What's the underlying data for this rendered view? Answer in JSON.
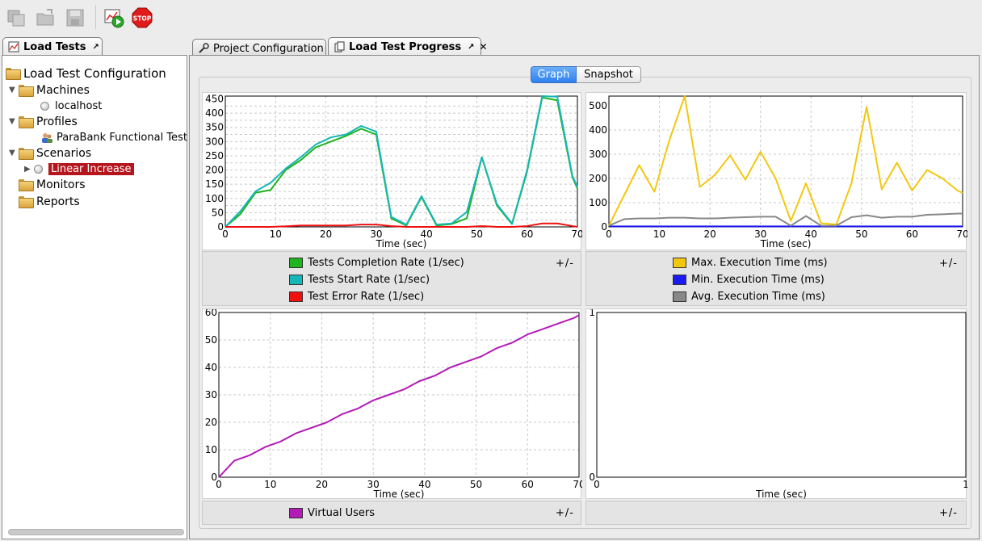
{
  "toolbar": {
    "buttons": [
      {
        "icon": "copy-icon",
        "enabled": false
      },
      {
        "icon": "open-folder-icon",
        "enabled": false
      },
      {
        "icon": "save-icon",
        "enabled": false
      },
      {
        "icon": "run-load-test-icon",
        "enabled": true
      },
      {
        "icon": "stop-icon",
        "label": "STOP",
        "enabled": true
      }
    ]
  },
  "left_tab": {
    "label": "Load Tests"
  },
  "tree": {
    "root": "Load Test Configuration",
    "machines": {
      "label": "Machines",
      "children": [
        "localhost"
      ]
    },
    "profiles": {
      "label": "Profiles",
      "children": [
        "ParaBank Functional Test"
      ]
    },
    "scenarios": {
      "label": "Scenarios",
      "children": [
        "Linear Increase"
      ]
    },
    "monitors": {
      "label": "Monitors"
    },
    "reports": {
      "label": "Reports"
    }
  },
  "main_tabs": [
    {
      "label": "Project Configuration",
      "active": false
    },
    {
      "label": "Load Test Progress",
      "active": true
    }
  ],
  "view_toggle": {
    "graph": "Graph",
    "snapshot": "Snapshot",
    "selected": "graph"
  },
  "colors": {
    "completion": "#1fb31f",
    "start": "#17b7b7",
    "error": "#ef1010",
    "max_exec": "#f2c80f",
    "min_exec": "#1a1af0",
    "avg_exec": "#888888",
    "virtual_users": "#b21bb5"
  },
  "legend_toggle": "+/-",
  "chart_data": [
    {
      "type": "line",
      "xlabel": "Time (sec)",
      "xlim": [
        0,
        70
      ],
      "ylim": [
        0,
        460
      ],
      "x_ticks": [
        0,
        10,
        20,
        30,
        40,
        50,
        60,
        70
      ],
      "y_ticks": [
        0,
        25,
        50,
        75,
        100,
        125,
        150,
        175,
        200,
        225,
        250,
        275,
        300,
        325,
        350,
        375,
        400,
        425,
        450
      ],
      "y_tick_labels": [
        "0",
        "",
        "50",
        "",
        "100",
        "",
        "150",
        "",
        "200",
        "",
        "250",
        "",
        "300",
        "",
        "350",
        "",
        "400",
        "",
        "450"
      ],
      "series": [
        {
          "name": "Tests Completion Rate (1/sec)",
          "color_key": "completion",
          "x": [
            0,
            3,
            6,
            9,
            12,
            15,
            18,
            21,
            24,
            27,
            30,
            33,
            36,
            39,
            42,
            45,
            48,
            51,
            54,
            57,
            60,
            63,
            66,
            69,
            70
          ],
          "y": [
            0,
            45,
            120,
            130,
            200,
            235,
            280,
            300,
            320,
            345,
            325,
            30,
            5,
            105,
            5,
            10,
            30,
            245,
            75,
            10,
            195,
            455,
            445,
            175,
            135
          ]
        },
        {
          "name": "Tests Start Rate (1/sec)",
          "color_key": "start",
          "x": [
            0,
            3,
            6,
            9,
            12,
            15,
            18,
            21,
            24,
            27,
            30,
            33,
            36,
            39,
            42,
            45,
            48,
            51,
            54,
            57,
            60,
            63,
            66,
            69,
            70
          ],
          "y": [
            0,
            55,
            125,
            155,
            205,
            245,
            290,
            315,
            325,
            355,
            335,
            35,
            8,
            108,
            8,
            12,
            52,
            245,
            80,
            12,
            200,
            460,
            458,
            180,
            140
          ]
        },
        {
          "name": "Test Error Rate (1/sec)",
          "color_key": "error",
          "x": [
            0,
            3,
            6,
            9,
            12,
            15,
            18,
            21,
            24,
            27,
            30,
            33,
            36,
            39,
            42,
            45,
            48,
            51,
            54,
            57,
            60,
            63,
            66,
            69,
            70
          ],
          "y": [
            0,
            0,
            0,
            0,
            2,
            5,
            5,
            5,
            5,
            8,
            8,
            3,
            0,
            0,
            0,
            0,
            0,
            3,
            0,
            0,
            3,
            12,
            12,
            3,
            0
          ]
        }
      ]
    },
    {
      "type": "line",
      "xlabel": "Time (sec)",
      "xlim": [
        0,
        70
      ],
      "ylim": [
        0,
        540
      ],
      "x_ticks": [
        0,
        10,
        20,
        30,
        40,
        50,
        60,
        70
      ],
      "y_ticks": [
        0,
        100,
        200,
        300,
        400,
        500
      ],
      "series": [
        {
          "name": "Max. Execution Time (ms)",
          "color_key": "max_exec",
          "x": [
            0,
            3,
            6,
            9,
            12,
            15,
            18,
            21,
            24,
            27,
            30,
            33,
            36,
            39,
            42,
            45,
            48,
            51,
            54,
            57,
            60,
            63,
            66,
            69,
            70
          ],
          "y": [
            5,
            130,
            255,
            145,
            360,
            540,
            165,
            215,
            295,
            195,
            310,
            200,
            25,
            180,
            15,
            10,
            180,
            495,
            155,
            265,
            150,
            235,
            200,
            150,
            140
          ]
        },
        {
          "name": "Min. Execution Time (ms)",
          "color_key": "min_exec",
          "x": [
            0,
            3,
            6,
            9,
            12,
            15,
            18,
            21,
            24,
            27,
            30,
            33,
            36,
            39,
            42,
            45,
            48,
            51,
            54,
            57,
            60,
            63,
            66,
            69,
            70
          ],
          "y": [
            2,
            2,
            2,
            2,
            2,
            2,
            2,
            2,
            2,
            2,
            2,
            2,
            2,
            2,
            2,
            2,
            2,
            2,
            2,
            2,
            2,
            2,
            2,
            2,
            2
          ]
        },
        {
          "name": "Avg. Execution Time (ms)",
          "color_key": "avg_exec",
          "x": [
            0,
            3,
            6,
            9,
            12,
            15,
            18,
            21,
            24,
            27,
            30,
            33,
            36,
            39,
            42,
            45,
            48,
            51,
            54,
            57,
            60,
            63,
            66,
            69,
            70
          ],
          "y": [
            5,
            32,
            35,
            35,
            38,
            38,
            35,
            35,
            38,
            40,
            42,
            42,
            5,
            45,
            5,
            5,
            40,
            48,
            38,
            42,
            42,
            50,
            52,
            55,
            55
          ]
        }
      ]
    },
    {
      "type": "line",
      "xlabel": "Time (sec)",
      "xlim": [
        0,
        70
      ],
      "ylim": [
        0,
        60
      ],
      "x_ticks": [
        0,
        10,
        20,
        30,
        40,
        50,
        60,
        70
      ],
      "y_ticks": [
        0,
        10,
        20,
        30,
        40,
        50,
        60
      ],
      "series": [
        {
          "name": "Virtual Users",
          "color_key": "virtual_users",
          "x": [
            0,
            3,
            6,
            9,
            12,
            15,
            18,
            21,
            24,
            27,
            30,
            33,
            36,
            39,
            42,
            45,
            48,
            51,
            54,
            57,
            60,
            63,
            66,
            69,
            70
          ],
          "y": [
            0,
            6,
            8,
            11,
            13,
            16,
            18,
            20,
            23,
            25,
            28,
            30,
            32,
            35,
            37,
            40,
            42,
            44,
            47,
            49,
            52,
            54,
            56,
            58,
            59
          ]
        }
      ]
    },
    {
      "type": "line",
      "xlabel": "Time (sec)",
      "xlim": [
        0,
        1
      ],
      "ylim": [
        0,
        1
      ],
      "x_ticks": [
        0,
        1
      ],
      "y_ticks": [
        0,
        1
      ],
      "series": []
    }
  ]
}
